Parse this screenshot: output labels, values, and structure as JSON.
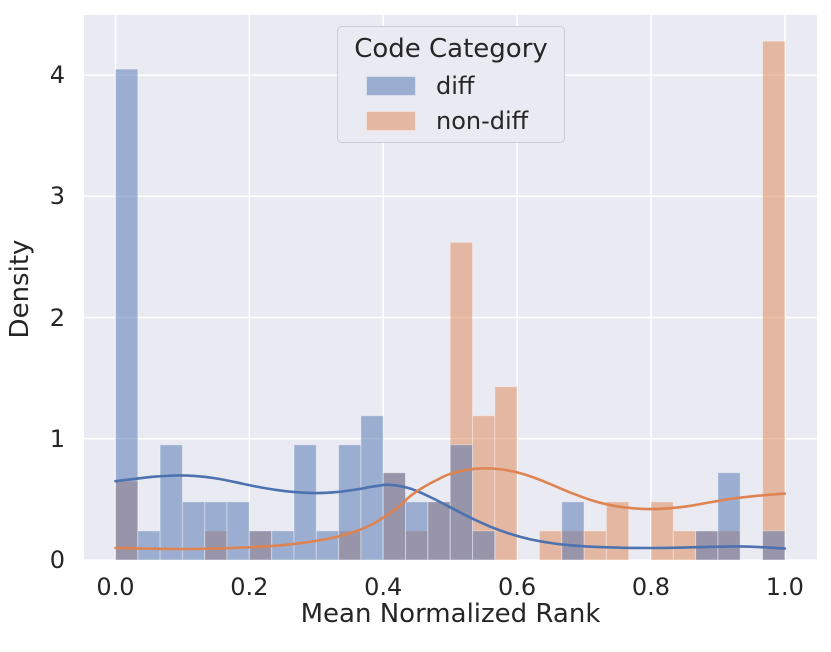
{
  "figure": {
    "background": "#ffffff",
    "plot_background": "#EAEAF2",
    "grid_color": "#ffffff",
    "text_color": "#262626"
  },
  "chart_data": {
    "type": "histogram+kde (layered density histogram with kernel density curves)",
    "title": "",
    "xlabel": "Mean Normalized Rank",
    "ylabel": "Density",
    "xlim": [
      -0.047,
      1.048
    ],
    "ylim": [
      0,
      4.496
    ],
    "grid": true,
    "legend": {
      "title": "Code Category",
      "position": "upper center"
    },
    "x_ticks": [
      {
        "value": 0.0,
        "label": "0.0"
      },
      {
        "value": 0.2,
        "label": "0.2"
      },
      {
        "value": 0.4,
        "label": "0.4"
      },
      {
        "value": 0.6,
        "label": "0.6"
      },
      {
        "value": 0.8,
        "label": "0.8"
      },
      {
        "value": 1.0,
        "label": "1.0"
      }
    ],
    "y_ticks": [
      {
        "value": 0,
        "label": "0"
      },
      {
        "value": 1,
        "label": "1"
      },
      {
        "value": 2,
        "label": "2"
      },
      {
        "value": 3,
        "label": "3"
      },
      {
        "value": 4,
        "label": "4"
      }
    ],
    "bins": {
      "start": 0.0,
      "end": 1.0,
      "count": 30,
      "bin_width": 0.0333
    },
    "series": [
      {
        "name": "diff",
        "color": "#4C72B0",
        "bar_alpha": 0.5,
        "bar_heights": [
          4.05,
          0.24,
          0.95,
          0.48,
          0.48,
          0.48,
          0.24,
          0.24,
          0.95,
          0.24,
          0.95,
          1.19,
          0.72,
          0.48,
          0.48,
          0.95,
          0.24,
          0,
          0,
          0,
          0.48,
          0,
          0,
          0,
          0,
          0,
          0.24,
          0.72,
          0,
          0.24
        ],
        "kde": [
          [
            0.0,
            0.65
          ],
          [
            0.03,
            0.67
          ],
          [
            0.06,
            0.688
          ],
          [
            0.09,
            0.697
          ],
          [
            0.12,
            0.692
          ],
          [
            0.15,
            0.673
          ],
          [
            0.18,
            0.641
          ],
          [
            0.21,
            0.606
          ],
          [
            0.24,
            0.578
          ],
          [
            0.27,
            0.559
          ],
          [
            0.3,
            0.552
          ],
          [
            0.33,
            0.56
          ],
          [
            0.36,
            0.582
          ],
          [
            0.39,
            0.61
          ],
          [
            0.41,
            0.62
          ],
          [
            0.44,
            0.59
          ],
          [
            0.47,
            0.52
          ],
          [
            0.5,
            0.435
          ],
          [
            0.53,
            0.35
          ],
          [
            0.56,
            0.275
          ],
          [
            0.59,
            0.215
          ],
          [
            0.62,
            0.17
          ],
          [
            0.65,
            0.14
          ],
          [
            0.68,
            0.121
          ],
          [
            0.71,
            0.11
          ],
          [
            0.74,
            0.104
          ],
          [
            0.77,
            0.1
          ],
          [
            0.8,
            0.099
          ],
          [
            0.83,
            0.101
          ],
          [
            0.86,
            0.105
          ],
          [
            0.89,
            0.109
          ],
          [
            0.92,
            0.111
          ],
          [
            0.95,
            0.11
          ],
          [
            1.0,
            0.094
          ]
        ]
      },
      {
        "name": "non-diff",
        "color": "#DD8452",
        "bar_alpha": 0.5,
        "bar_heights": [
          0.65,
          0,
          0,
          0,
          0.24,
          0,
          0.24,
          0,
          0,
          0,
          0.24,
          0,
          0.72,
          0.24,
          0.48,
          2.62,
          1.19,
          1.43,
          0,
          0.24,
          0.24,
          0.24,
          0.48,
          0,
          0.48,
          0.24,
          0.24,
          0.24,
          0,
          4.28
        ],
        "kde": [
          [
            0.0,
            0.1
          ],
          [
            0.05,
            0.093
          ],
          [
            0.1,
            0.091
          ],
          [
            0.15,
            0.095
          ],
          [
            0.2,
            0.105
          ],
          [
            0.25,
            0.123
          ],
          [
            0.3,
            0.158
          ],
          [
            0.34,
            0.205
          ],
          [
            0.38,
            0.285
          ],
          [
            0.42,
            0.425
          ],
          [
            0.44,
            0.525
          ],
          [
            0.46,
            0.6
          ],
          [
            0.48,
            0.66
          ],
          [
            0.5,
            0.71
          ],
          [
            0.53,
            0.748
          ],
          [
            0.56,
            0.755
          ],
          [
            0.59,
            0.735
          ],
          [
            0.62,
            0.69
          ],
          [
            0.65,
            0.625
          ],
          [
            0.68,
            0.555
          ],
          [
            0.71,
            0.495
          ],
          [
            0.74,
            0.452
          ],
          [
            0.77,
            0.428
          ],
          [
            0.8,
            0.42
          ],
          [
            0.83,
            0.428
          ],
          [
            0.86,
            0.448
          ],
          [
            0.89,
            0.478
          ],
          [
            0.92,
            0.505
          ],
          [
            0.95,
            0.525
          ],
          [
            1.0,
            0.548
          ]
        ]
      }
    ]
  }
}
